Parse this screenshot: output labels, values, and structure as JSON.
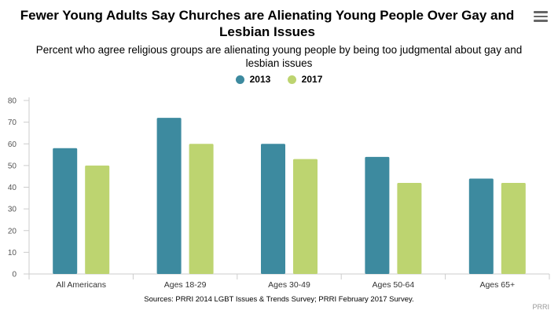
{
  "menu_icon": "hamburger-menu-icon",
  "chart_data": {
    "type": "bar",
    "title": "Fewer Young Adults Say Churches are Alienating Young People Over Gay and Lesbian Issues",
    "subtitle": "Percent who agree religious groups are alienating young people by being too judgmental about gay and lesbian issues",
    "categories": [
      "All Americans",
      "Ages 18-29",
      "Ages 30-49",
      "Ages 50-64",
      "Ages 65+"
    ],
    "series": [
      {
        "name": "2013",
        "values": [
          58,
          72,
          60,
          54,
          44
        ],
        "color": "#3d8a9f"
      },
      {
        "name": "2017",
        "values": [
          50,
          60,
          53,
          42,
          42
        ],
        "color": "#bdd470"
      }
    ],
    "xlabel": "",
    "ylabel": "",
    "ylim": [
      0,
      80
    ],
    "yticks": [
      0,
      10,
      20,
      30,
      40,
      50,
      60,
      70,
      80
    ],
    "grid": false,
    "legend_position": "top-center",
    "source": "Sources: PRRI 2014 LGBT Issues & Trends Survey; PRRI February 2017 Survey.",
    "credit": "PRRI"
  }
}
